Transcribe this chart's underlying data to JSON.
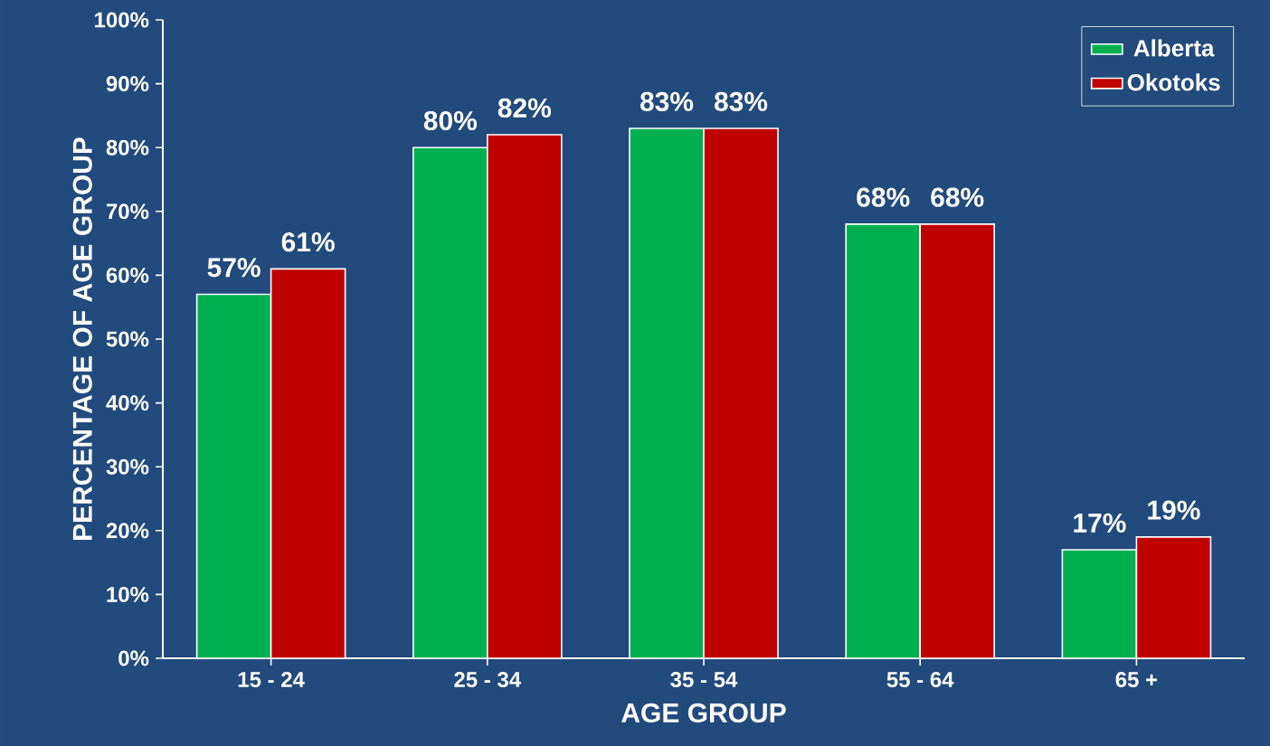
{
  "chart_data": {
    "type": "bar",
    "xlabel": "AGE GROUP",
    "ylabel": "PERCENTAGE OF AGE GROUP",
    "categories": [
      "15 - 24",
      "25 - 34",
      "35 - 54",
      "55 - 64",
      "65 +"
    ],
    "series": [
      {
        "name": "Alberta",
        "color": "#00b050",
        "values": [
          57,
          80,
          83,
          68,
          17
        ],
        "value_labels": [
          "57%",
          "80%",
          "83%",
          "68%",
          "17%"
        ]
      },
      {
        "name": "Okotoks",
        "color": "#c00000",
        "values": [
          61,
          82,
          83,
          68,
          19
        ],
        "value_labels": [
          "61%",
          "82%",
          "83%",
          "68%",
          "19%"
        ]
      }
    ],
    "ylim": [
      0,
      100
    ],
    "yticks": [
      {
        "value": 0,
        "label": "0%"
      },
      {
        "value": 10,
        "label": "10%"
      },
      {
        "value": 20,
        "label": "20%"
      },
      {
        "value": 30,
        "label": "30%"
      },
      {
        "value": 40,
        "label": "40%"
      },
      {
        "value": 50,
        "label": "50%"
      },
      {
        "value": 60,
        "label": "60%"
      },
      {
        "value": 70,
        "label": "70%"
      },
      {
        "value": 80,
        "label": "80%"
      },
      {
        "value": 90,
        "label": "90%"
      },
      {
        "value": 100,
        "label": "100%"
      }
    ],
    "grid": false,
    "legend": "top right"
  }
}
